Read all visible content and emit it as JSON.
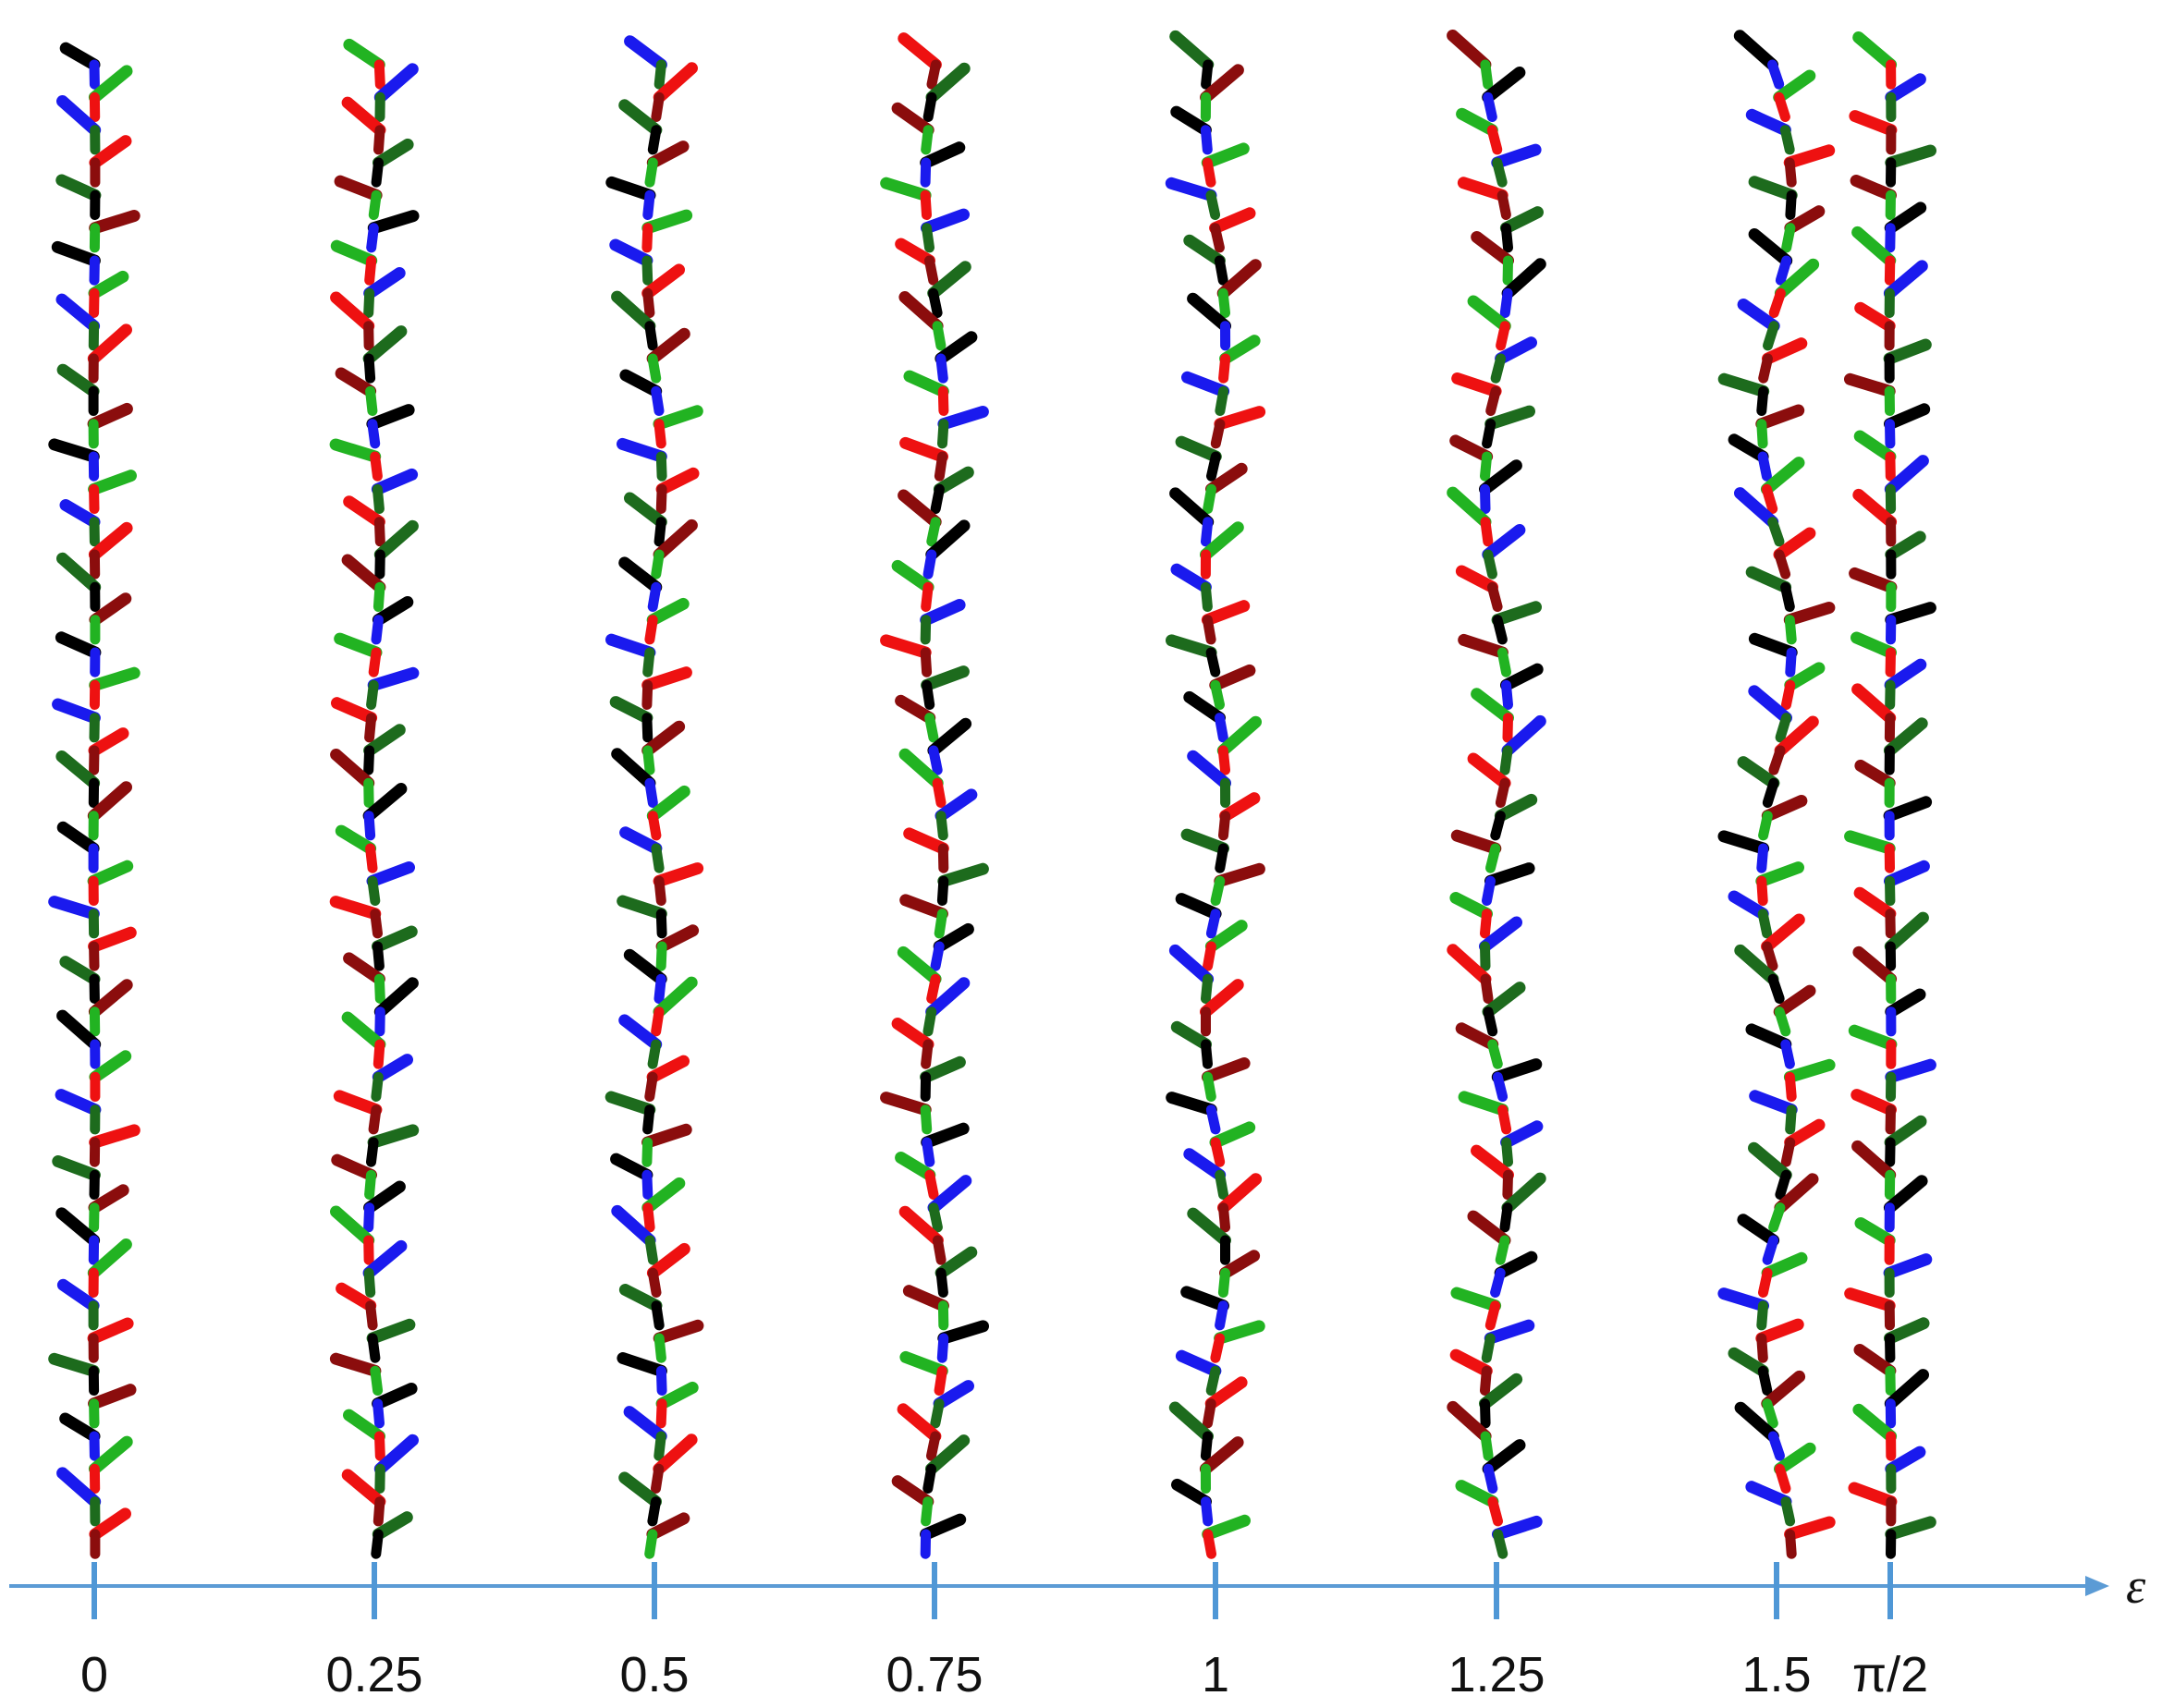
{
  "colors": {
    "axis": "#5b9bd5",
    "tick": "#4f97d6",
    "segment_palette": [
      "#000000",
      "#22b322",
      "#1a1aee",
      "#ee1111",
      "#1d6b1d",
      "#8b0d0d"
    ]
  },
  "axis": {
    "symbol": "ε",
    "arrow": "right"
  },
  "columns": [
    {
      "label": "0",
      "epsilon": 0,
      "waviness": 0.05,
      "twist": 0.0
    },
    {
      "label": "0.25",
      "epsilon": 0.25,
      "waviness": 0.35,
      "twist": 0.3
    },
    {
      "label": "0.5",
      "epsilon": 0.5,
      "waviness": 0.45,
      "twist": 0.6
    },
    {
      "label": "0.75",
      "epsilon": 0.75,
      "waviness": 0.55,
      "twist": 0.9
    },
    {
      "label": "1",
      "epsilon": 1,
      "waviness": 0.6,
      "twist": 1.2
    },
    {
      "label": "1.25",
      "epsilon": 1.25,
      "waviness": 0.7,
      "twist": 1.5
    },
    {
      "label": "1.5",
      "epsilon": 1.5,
      "waviness": 0.9,
      "twist": 1.8
    },
    {
      "label": "π/2",
      "epsilon": 1.5708,
      "waviness": 0.05,
      "twist": 2.1
    }
  ],
  "segments_per_column": 46
}
